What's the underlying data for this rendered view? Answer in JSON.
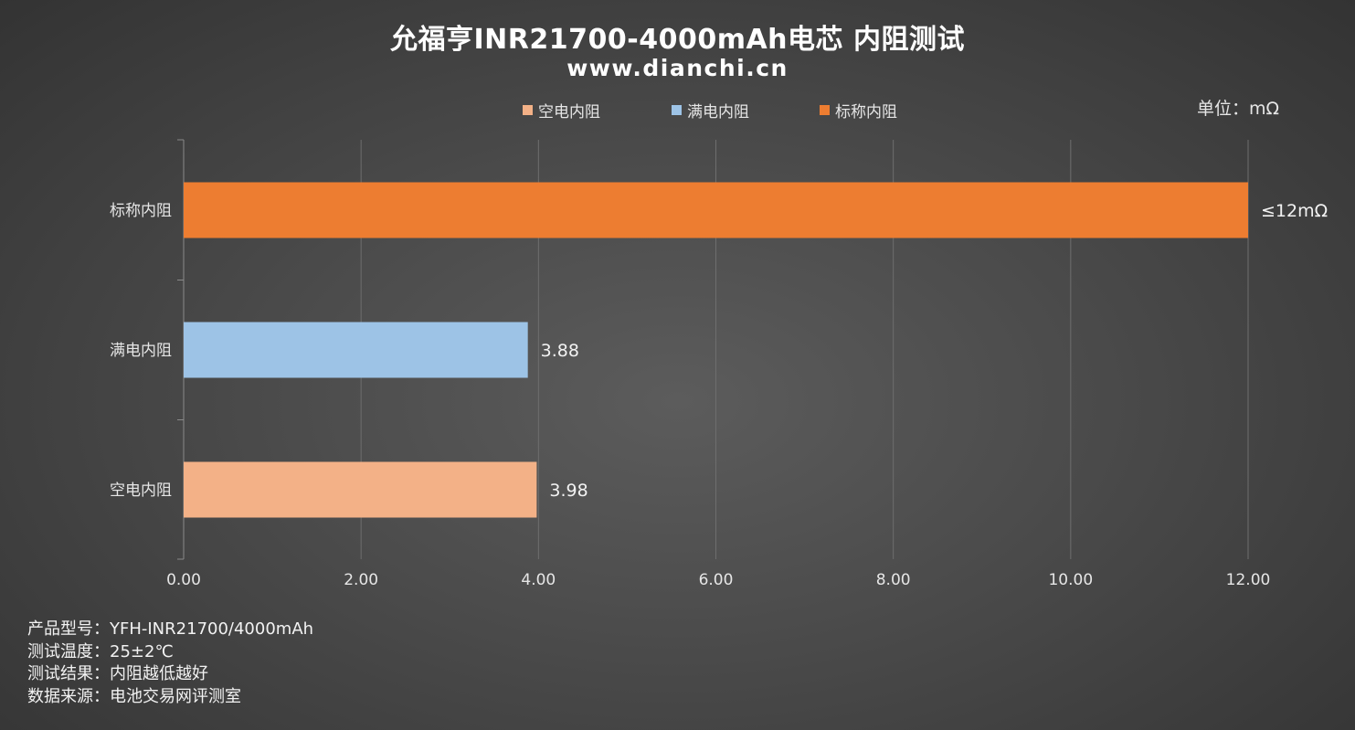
{
  "colors": {
    "empty": "#f3b187",
    "full": "#9dc3e6",
    "nominal": "#ed7d31",
    "grid": "#6e6e6e",
    "text": "#e6e6e6"
  },
  "chart_data": {
    "type": "bar",
    "orientation": "horizontal",
    "title": "允福亨INR21700-4000mAh电芯 内阻测试",
    "subtitle": "www.dianchi.cn",
    "unit_label": "单位：mΩ",
    "categories": [
      "空电内阻",
      "满电内阻",
      "标称内阻"
    ],
    "values": [
      3.98,
      3.88,
      12
    ],
    "data_labels": [
      "3.98",
      "3.88",
      "≤12mΩ"
    ],
    "bar_colors": [
      "#f3b187",
      "#9dc3e6",
      "#ed7d31"
    ],
    "legend": [
      "空电内阻",
      "满电内阻",
      "标称内阻"
    ],
    "legend_colors": [
      "#f3b187",
      "#9dc3e6",
      "#ed7d31"
    ],
    "legend_position": "top",
    "xlim": [
      0,
      12
    ],
    "x_ticks": [
      "0.00",
      "2.00",
      "4.00",
      "6.00",
      "8.00",
      "10.00",
      "12.00"
    ],
    "grid": true
  },
  "notes": [
    "产品型号：YFH-INR21700/4000mAh",
    "测试温度：25±2℃",
    "测试结果：内阻越低越好",
    "数据来源：电池交易网评测室"
  ]
}
